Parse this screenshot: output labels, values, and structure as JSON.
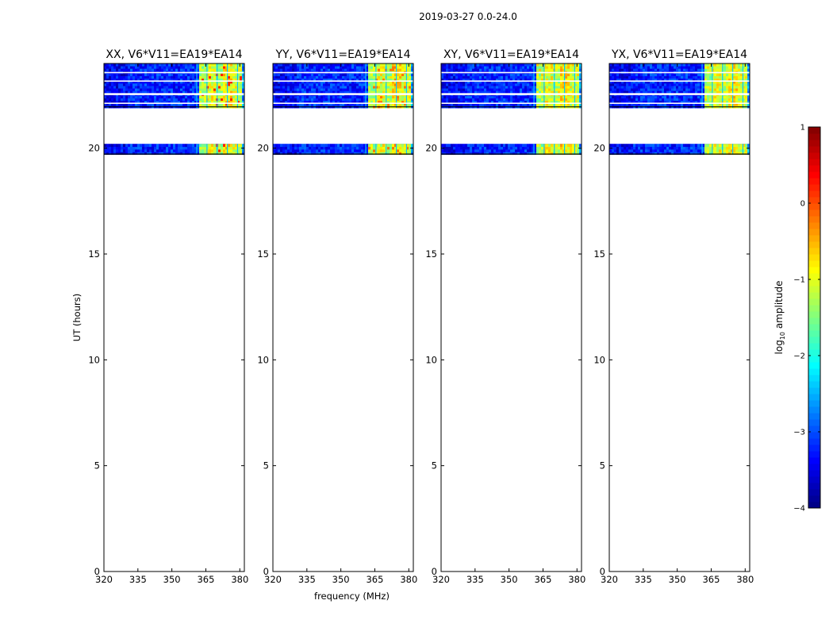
{
  "figure": {
    "suptitle": "2019-03-27 0.0-24.0"
  },
  "chart_data": [
    {
      "type": "heatmap",
      "title": "XX, V6*V11=EA19*EA14",
      "xlabel": "",
      "ylabel": "UT (hours)",
      "xlim": [
        320,
        382
      ],
      "ylim": [
        0,
        24
      ],
      "xticks": [
        "320",
        "335",
        "350",
        "365",
        "380"
      ],
      "yticks": [
        "0",
        "5",
        "10",
        "15",
        "20"
      ],
      "data_time_ranges": [
        [
          19.7,
          20.2
        ],
        [
          21.9,
          24.0
        ]
      ],
      "bright_band_freq_range": [
        361,
        380
      ],
      "peak_log10_amplitude": 0.2
    },
    {
      "type": "heatmap",
      "title": "YY, V6*V11=EA19*EA14",
      "xlabel": "frequency (MHz)",
      "ylabel": "",
      "xlim": [
        320,
        382
      ],
      "ylim": [
        0,
        24
      ],
      "xticks": [
        "320",
        "335",
        "350",
        "365",
        "380"
      ],
      "yticks": [
        "0",
        "5",
        "10",
        "15",
        "20"
      ],
      "data_time_ranges": [
        [
          19.7,
          20.2
        ],
        [
          21.9,
          24.0
        ]
      ],
      "bright_band_freq_range": [
        361,
        380
      ],
      "peak_log10_amplitude": -0.2
    },
    {
      "type": "heatmap",
      "title": "XY, V6*V11=EA19*EA14",
      "xlabel": "",
      "ylabel": "",
      "xlim": [
        320,
        382
      ],
      "ylim": [
        0,
        24
      ],
      "xticks": [
        "320",
        "335",
        "350",
        "365",
        "380"
      ],
      "yticks": [
        "0",
        "5",
        "10",
        "15",
        "20"
      ],
      "data_time_ranges": [
        [
          19.7,
          20.2
        ],
        [
          21.9,
          24.0
        ]
      ],
      "bright_band_freq_range": [
        361,
        380
      ],
      "peak_log10_amplitude": -0.6
    },
    {
      "type": "heatmap",
      "title": "YX, V6*V11=EA19*EA14",
      "xlabel": "",
      "ylabel": "",
      "xlim": [
        320,
        382
      ],
      "ylim": [
        0,
        24
      ],
      "xticks": [
        "320",
        "335",
        "350",
        "365",
        "380"
      ],
      "yticks": [
        "0",
        "5",
        "10",
        "15",
        "20"
      ],
      "data_time_ranges": [
        [
          19.7,
          20.2
        ],
        [
          21.9,
          24.0
        ]
      ],
      "bright_band_freq_range": [
        361,
        380
      ],
      "peak_log10_amplitude": -0.7
    }
  ],
  "colorbar": {
    "label": "log10 amplitude",
    "label_main": "log",
    "label_sub": "10",
    "label_rest": " amplitude",
    "range": [
      -4,
      1
    ],
    "ticks": [
      "1",
      "0",
      "−1",
      "−2",
      "−3",
      "−4"
    ],
    "colormap": "jet"
  }
}
